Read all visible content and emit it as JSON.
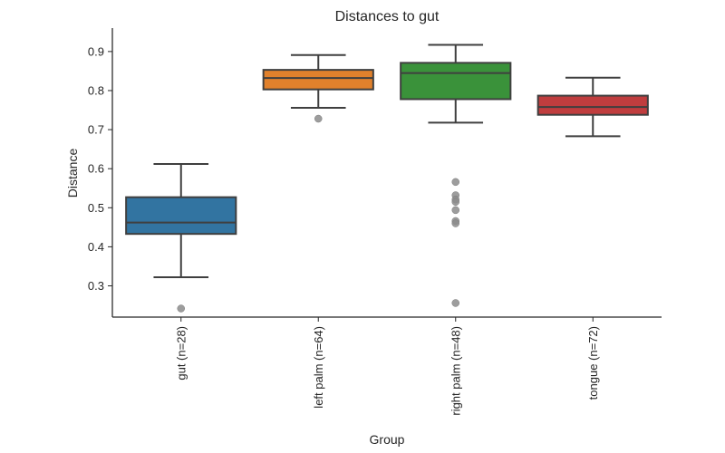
{
  "chart_data": {
    "type": "box",
    "title": "Distances to gut",
    "xlabel": "Group",
    "ylabel": "Distance",
    "ylim": [
      0.22,
      0.96
    ],
    "yticks": [
      0.3,
      0.4,
      0.5,
      0.6,
      0.7,
      0.8,
      0.9
    ],
    "ytick_labels": [
      "0.3",
      "0.4",
      "0.5",
      "0.6",
      "0.7",
      "0.8",
      "0.9"
    ],
    "grid": false,
    "legend": "none",
    "categories": [
      "gut (n=28)",
      "left palm (n=64)",
      "right palm (n=48)",
      "tongue (n=72)"
    ],
    "boxes": [
      {
        "category": "gut (n=28)",
        "color": "#3274a1",
        "whisker_low": 0.322,
        "q1": 0.433,
        "median": 0.462,
        "q3": 0.527,
        "whisker_high": 0.612,
        "outliers": [
          0.242
        ]
      },
      {
        "category": "left palm (n=64)",
        "color": "#e1812c",
        "whisker_low": 0.756,
        "q1": 0.803,
        "median": 0.832,
        "q3": 0.853,
        "whisker_high": 0.891,
        "outliers": [
          0.728
        ]
      },
      {
        "category": "right palm (n=48)",
        "color": "#3a923a",
        "whisker_low": 0.718,
        "q1": 0.778,
        "median": 0.845,
        "q3": 0.871,
        "whisker_high": 0.917,
        "outliers": [
          0.566,
          0.532,
          0.521,
          0.515,
          0.494,
          0.466,
          0.46,
          0.256
        ]
      },
      {
        "category": "tongue (n=72)",
        "color": "#c03d3e",
        "whisker_low": 0.683,
        "q1": 0.738,
        "median": 0.758,
        "q3": 0.787,
        "whisker_high": 0.833,
        "outliers": []
      }
    ],
    "outlier_color": "#8c8c8c",
    "line_color": "#3f3f3f"
  }
}
